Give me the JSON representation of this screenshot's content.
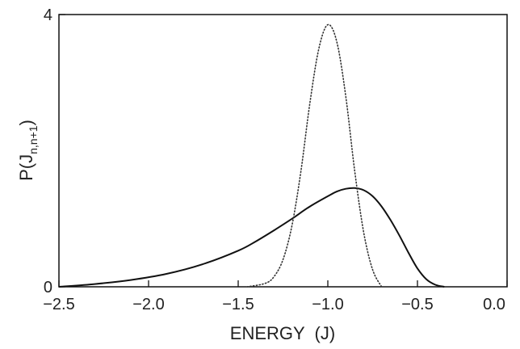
{
  "chart_data": {
    "type": "line",
    "title": "",
    "xlabel": "ENERGY  (J)",
    "ylabel": "P(J",
    "ylabel_sub": "n,n+1",
    "ylabel_close": ")",
    "xlim": [
      -2.5,
      0.0
    ],
    "ylim": [
      0,
      4
    ],
    "x_ticks": [
      -2.5,
      -2.0,
      -1.5,
      -1.0,
      -0.5,
      0.0
    ],
    "x_tick_labels": [
      "−2.5",
      "−2.0",
      "−1.5",
      "−1.0",
      "−0.5",
      "0.0"
    ],
    "y_ticks": [
      0,
      4
    ],
    "y_tick_labels": [
      "0",
      "4"
    ],
    "grid": false,
    "series": [
      {
        "style": "solid",
        "color": "#111111",
        "x": [
          -2.5,
          -2.3,
          -2.1,
          -1.9,
          -1.7,
          -1.5,
          -1.4,
          -1.3,
          -1.2,
          -1.1,
          -1.0,
          -0.95,
          -0.9,
          -0.85,
          -0.8,
          -0.75,
          -0.7,
          -0.65,
          -0.6,
          -0.55,
          -0.5,
          -0.45,
          -0.4,
          -0.35
        ],
        "y": [
          0.0,
          0.04,
          0.1,
          0.19,
          0.33,
          0.53,
          0.67,
          0.83,
          1.0,
          1.18,
          1.33,
          1.4,
          1.44,
          1.45,
          1.42,
          1.33,
          1.18,
          0.98,
          0.75,
          0.5,
          0.27,
          0.11,
          0.03,
          0.0
        ]
      },
      {
        "style": "dotted",
        "color": "#333333",
        "x": [
          -1.45,
          -1.35,
          -1.3,
          -1.25,
          -1.2,
          -1.15,
          -1.1,
          -1.05,
          -1.0,
          -0.95,
          -0.9,
          -0.85,
          -0.8,
          -0.75,
          -0.7
        ],
        "y": [
          0.0,
          0.05,
          0.15,
          0.4,
          0.9,
          1.7,
          2.7,
          3.5,
          3.85,
          3.6,
          2.8,
          1.7,
          0.8,
          0.25,
          0.0
        ]
      }
    ]
  }
}
